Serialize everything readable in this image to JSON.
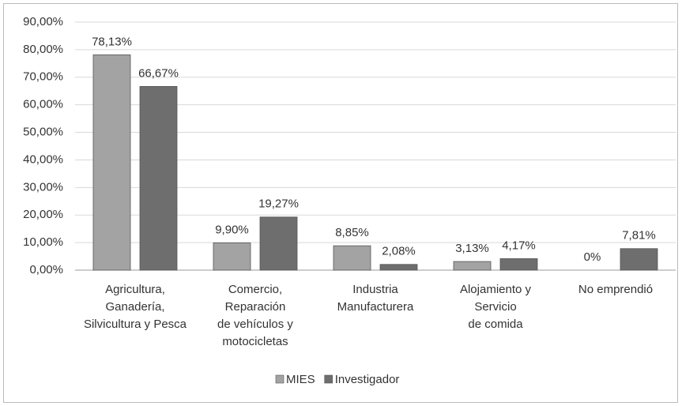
{
  "chart_data": {
    "type": "bar",
    "categories": [
      [
        "Agricultura,",
        "Ganadería,",
        "Silvicultura y Pesca"
      ],
      [
        "Comercio,",
        "Reparación",
        "de vehículos y",
        "motocicletas"
      ],
      [
        "Industria",
        "Manufacturera"
      ],
      [
        "Alojamiento y",
        "Servicio",
        "de comida"
      ],
      [
        "No emprendió"
      ]
    ],
    "series": [
      {
        "name": "MIES",
        "color": "#a3a3a3",
        "values": [
          78.13,
          9.9,
          8.85,
          3.13,
          0
        ],
        "value_labels": [
          "78,13%",
          "9,90%",
          "8,85%",
          "3,13%",
          "0%"
        ]
      },
      {
        "name": "Investigador",
        "color": "#6e6e6e",
        "values": [
          66.67,
          19.27,
          2.08,
          4.17,
          7.81
        ],
        "value_labels": [
          "66,67%",
          "19,27%",
          "2,08%",
          "4,17%",
          "7,81%"
        ]
      }
    ],
    "ylim": [
      0,
      90
    ],
    "yticks": [
      {
        "value": 0,
        "label": "0,00%"
      },
      {
        "value": 10,
        "label": "10,00%"
      },
      {
        "value": 20,
        "label": "20,00%"
      },
      {
        "value": 30,
        "label": "30,00%"
      },
      {
        "value": 40,
        "label": "40,00%"
      },
      {
        "value": 50,
        "label": "50,00%"
      },
      {
        "value": 60,
        "label": "60,00%"
      },
      {
        "value": 70,
        "label": "70,00%"
      },
      {
        "value": 80,
        "label": "80,00%"
      },
      {
        "value": 90,
        "label": "90,00%"
      }
    ],
    "grid": true,
    "legend": "bottom"
  }
}
